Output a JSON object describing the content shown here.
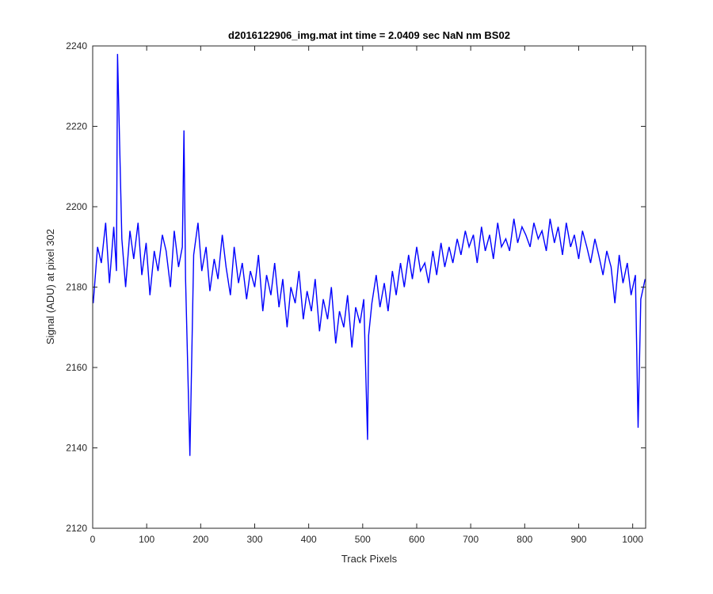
{
  "chart_data": {
    "type": "line",
    "title": "d2016122906_img.mat int time = 2.0409 sec  NaN nm BS02",
    "xlabel": "Track Pixels",
    "ylabel": "Signal (ADU) at pixel 302",
    "xlim": [
      0,
      1024
    ],
    "ylim": [
      2120,
      2240
    ],
    "xticks": [
      0,
      100,
      200,
      300,
      400,
      500,
      600,
      700,
      800,
      900,
      1000
    ],
    "yticks": [
      2120,
      2140,
      2160,
      2180,
      2200,
      2220,
      2240
    ],
    "grid": false,
    "line_color": "#0000ff",
    "series": [
      {
        "x": [
          1,
          9,
          16,
          24,
          31,
          39,
          44,
          46,
          54,
          61,
          69,
          76,
          84,
          91,
          99,
          106,
          114,
          121,
          129,
          136,
          144,
          151,
          159,
          166,
          169,
          172,
          180,
          187,
          195,
          202,
          210,
          217,
          225,
          232,
          240,
          247,
          255,
          262,
          270,
          277,
          285,
          292,
          300,
          307,
          315,
          322,
          330,
          337,
          345,
          352,
          360,
          367,
          375,
          382,
          390,
          397,
          405,
          412,
          420,
          427,
          435,
          442,
          450,
          457,
          465,
          472,
          480,
          487,
          495,
          502,
          509,
          511,
          517,
          525,
          532,
          540,
          547,
          555,
          562,
          570,
          577,
          585,
          592,
          600,
          607,
          615,
          622,
          630,
          637,
          645,
          652,
          660,
          667,
          675,
          682,
          690,
          697,
          705,
          712,
          720,
          727,
          735,
          742,
          750,
          757,
          765,
          772,
          780,
          787,
          795,
          802,
          810,
          817,
          825,
          832,
          840,
          847,
          855,
          862,
          870,
          877,
          885,
          892,
          900,
          907,
          915,
          922,
          930,
          937,
          945,
          952,
          960,
          967,
          975,
          982,
          990,
          997,
          1005,
          1010,
          1015,
          1023
        ],
        "values": [
          2176,
          2190,
          2186,
          2196,
          2181,
          2195,
          2184,
          2238,
          2192,
          2180,
          2194,
          2187,
          2196,
          2183,
          2191,
          2178,
          2189,
          2184,
          2193,
          2189,
          2180,
          2194,
          2185,
          2190,
          2219,
          2182,
          2138,
          2188,
          2196,
          2184,
          2190,
          2179,
          2187,
          2182,
          2193,
          2185,
          2178,
          2190,
          2181,
          2186,
          2177,
          2184,
          2180,
          2188,
          2174,
          2183,
          2178,
          2186,
          2175,
          2182,
          2170,
          2180,
          2176,
          2184,
          2172,
          2179,
          2174,
          2182,
          2169,
          2177,
          2172,
          2180,
          2166,
          2174,
          2170,
          2178,
          2165,
          2175,
          2171,
          2177,
          2142,
          2168,
          2176,
          2183,
          2175,
          2181,
          2174,
          2184,
          2178,
          2186,
          2180,
          2188,
          2182,
          2190,
          2184,
          2186,
          2181,
          2189,
          2183,
          2191,
          2185,
          2190,
          2186,
          2192,
          2188,
          2194,
          2190,
          2193,
          2186,
          2195,
          2189,
          2193,
          2187,
          2196,
          2190,
          2192,
          2189,
          2197,
          2191,
          2195,
          2193,
          2190,
          2196,
          2192,
          2194,
          2189,
          2197,
          2191,
          2195,
          2188,
          2196,
          2190,
          2193,
          2187,
          2194,
          2190,
          2186,
          2192,
          2188,
          2183,
          2189,
          2185,
          2176,
          2188,
          2181,
          2186,
          2178,
          2183,
          2145,
          2177,
          2182
        ]
      }
    ]
  }
}
